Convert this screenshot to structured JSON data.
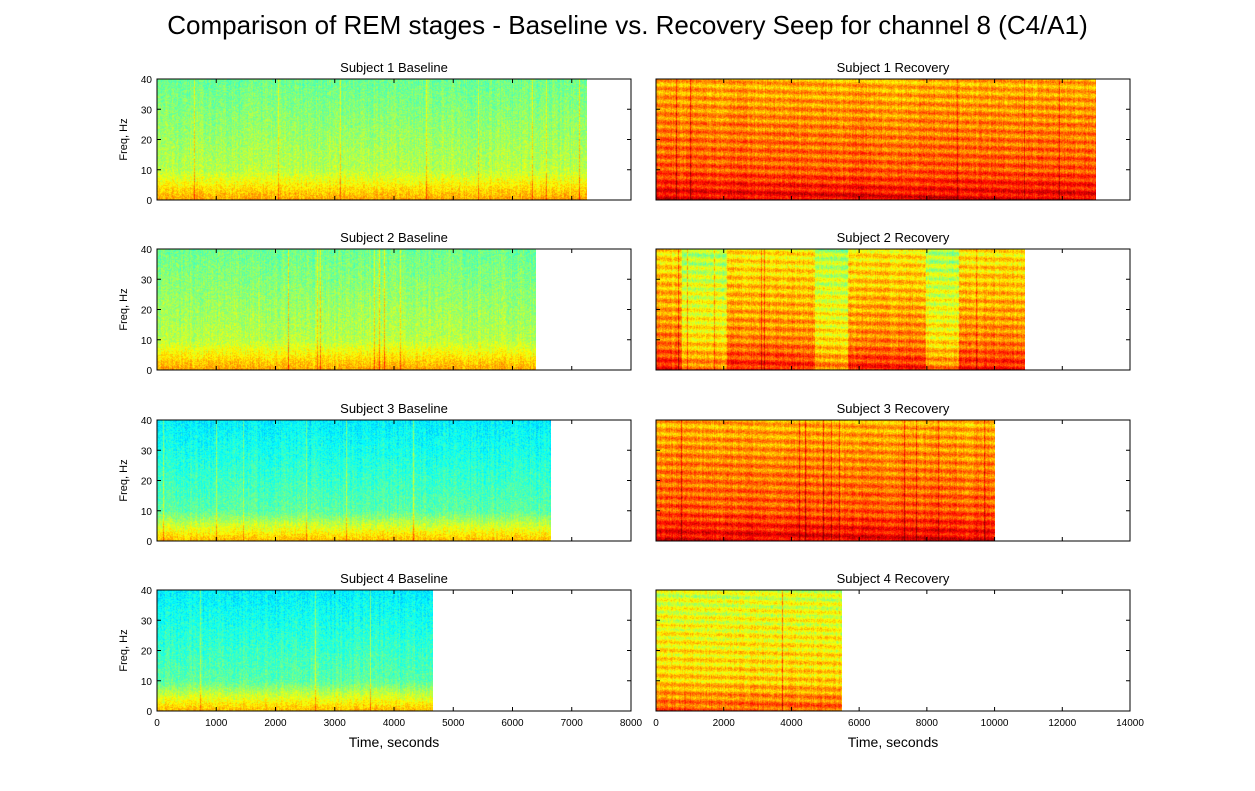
{
  "figure": {
    "title": "Comparison of REM stages - Baseline vs. Recovery Seep for channel 8 (C4/A1)"
  },
  "chart_data": [
    {
      "type": "heatmap",
      "title": "Subject 1 Baseline",
      "ylabel": "Freq, Hz",
      "xlabel": "",
      "xlim": [
        0,
        8000
      ],
      "ylim": [
        0,
        40
      ],
      "xticks": [],
      "yticks": [
        0,
        10,
        20,
        30,
        40
      ],
      "data_extent_x": [
        0,
        7250
      ],
      "intensity": "low",
      "colormap": "jet",
      "grid": false
    },
    {
      "type": "heatmap",
      "title": "Subject 1 Recovery",
      "ylabel": "",
      "xlabel": "",
      "xlim": [
        0,
        14000
      ],
      "ylim": [
        0,
        40
      ],
      "xticks": [],
      "yticks": [],
      "data_extent_x": [
        0,
        13000
      ],
      "intensity": "high",
      "colormap": "jet",
      "grid": false
    },
    {
      "type": "heatmap",
      "title": "Subject 2 Baseline",
      "ylabel": "Freq, Hz",
      "xlabel": "",
      "xlim": [
        0,
        8000
      ],
      "ylim": [
        0,
        40
      ],
      "xticks": [],
      "yticks": [
        0,
        10,
        20,
        30,
        40
      ],
      "data_extent_x": [
        0,
        6400
      ],
      "intensity": "low",
      "colormap": "jet",
      "grid": false
    },
    {
      "type": "heatmap",
      "title": "Subject 2 Recovery",
      "ylabel": "",
      "xlabel": "",
      "xlim": [
        0,
        14000
      ],
      "ylim": [
        0,
        40
      ],
      "xticks": [],
      "yticks": [],
      "data_extent_x": [
        0,
        10900
      ],
      "intensity": "banded",
      "colormap": "jet",
      "grid": false
    },
    {
      "type": "heatmap",
      "title": "Subject 3 Baseline",
      "ylabel": "Freq, Hz",
      "xlabel": "",
      "xlim": [
        0,
        8000
      ],
      "ylim": [
        0,
        40
      ],
      "xticks": [],
      "yticks": [
        0,
        10,
        20,
        30,
        40
      ],
      "data_extent_x": [
        0,
        6650
      ],
      "intensity": "cool",
      "colormap": "jet",
      "grid": false
    },
    {
      "type": "heatmap",
      "title": "Subject 3 Recovery",
      "ylabel": "",
      "xlabel": "",
      "xlim": [
        0,
        14000
      ],
      "ylim": [
        0,
        40
      ],
      "xticks": [],
      "yticks": [],
      "data_extent_x": [
        0,
        10000
      ],
      "intensity": "high",
      "colormap": "jet",
      "grid": false
    },
    {
      "type": "heatmap",
      "title": "Subject 4 Baseline",
      "ylabel": "Freq, Hz",
      "xlabel": "Time, seconds",
      "xlim": [
        0,
        8000
      ],
      "ylim": [
        0,
        40
      ],
      "xticks": [
        0,
        1000,
        2000,
        3000,
        4000,
        5000,
        6000,
        7000,
        8000
      ],
      "yticks": [
        0,
        10,
        20,
        30,
        40
      ],
      "data_extent_x": [
        0,
        4650
      ],
      "intensity": "cool",
      "colormap": "jet",
      "grid": false
    },
    {
      "type": "heatmap",
      "title": "Subject 4 Recovery",
      "ylabel": "",
      "xlabel": "Time, seconds",
      "xlim": [
        0,
        14000
      ],
      "ylim": [
        0,
        40
      ],
      "xticks": [
        0,
        2000,
        4000,
        6000,
        8000,
        10000,
        12000,
        14000
      ],
      "yticks": [],
      "data_extent_x": [
        0,
        5500
      ],
      "intensity": "medium",
      "colormap": "jet",
      "grid": false
    }
  ]
}
